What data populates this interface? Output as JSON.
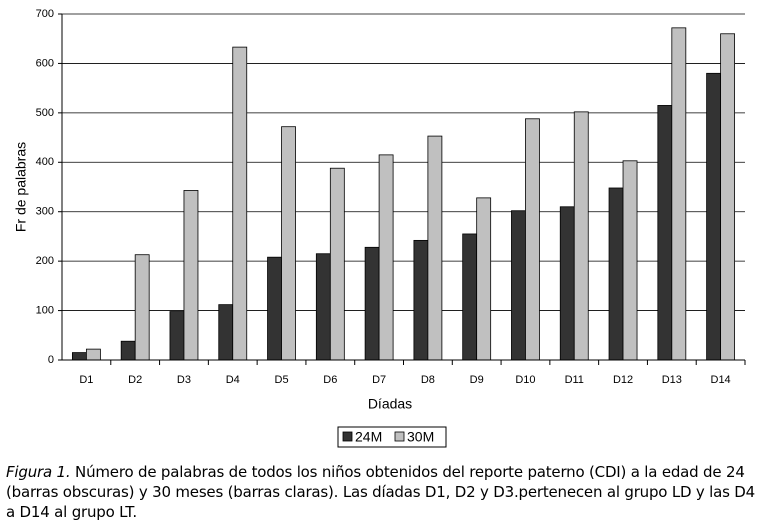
{
  "chart_data": {
    "type": "bar",
    "categories": [
      "D1",
      "D2",
      "D3",
      "D4",
      "D5",
      "D6",
      "D7",
      "D8",
      "D9",
      "D10",
      "D11",
      "D12",
      "D13",
      "D14"
    ],
    "series": [
      {
        "name": "24M",
        "color": "#333333",
        "values": [
          15,
          38,
          98,
          112,
          208,
          215,
          228,
          242,
          255,
          302,
          310,
          348,
          515,
          580
        ]
      },
      {
        "name": "30M",
        "color": "#c0c0c0",
        "values": [
          22,
          213,
          343,
          633,
          472,
          388,
          415,
          453,
          328,
          488,
          502,
          403,
          672,
          660
        ]
      }
    ],
    "xlabel": "Díadas",
    "ylabel": "Fr de palabras",
    "ylim": [
      0,
      700
    ],
    "yticks": [
      0,
      100,
      200,
      300,
      400,
      500,
      600,
      700
    ],
    "grid": true,
    "legend": "bottom"
  },
  "caption": {
    "label": "Figura 1.",
    "text": "Número de palabras de todos los niños obtenidos del reporte paterno (CDI) a la edad de 24 (barras obscuras) y 30 meses (barras claras). Las díadas D1, D2 y D3.pertenecen al grupo LD y las D4 a D14 al grupo LT."
  }
}
